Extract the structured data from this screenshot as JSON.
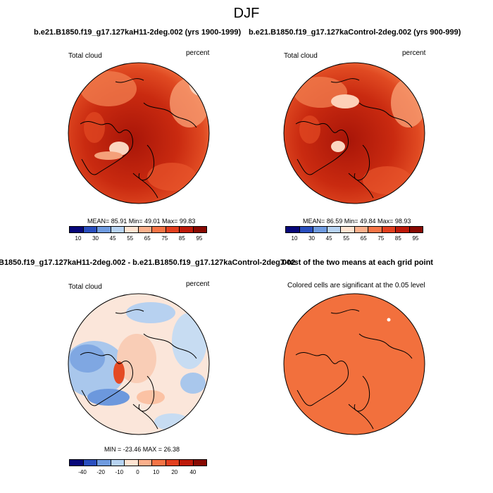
{
  "figure": {
    "title": "DJF",
    "panels": [
      {
        "title": "b.e21.B1850.f19_g17.127kaH11-2deg.002 (yrs 1900-1999)",
        "variable": "Total cloud",
        "units": "percent",
        "stats": "MEAN= 85.91  Min= 49.01  Max= 99.83",
        "colorbar_ticks": [
          "10",
          "30",
          "45",
          "55",
          "65",
          "75",
          "85",
          "95"
        ]
      },
      {
        "title": "b.e21.B1850.f19_g17.127kaControl-2deg.002 (yrs 900-999)",
        "variable": "Total cloud",
        "units": "percent",
        "stats": "MEAN= 86.59  Min= 49.84  Max= 98.93",
        "colorbar_ticks": [
          "10",
          "30",
          "45",
          "55",
          "65",
          "75",
          "85",
          "95"
        ]
      },
      {
        "title": "B1850.f19_g17.127kaH11-2deg.002 - b.e21.B1850.f19_g17.127kaControl-2deg.002",
        "variable": "Total cloud",
        "units": "percent",
        "stats": "MIN = -23.46 MAX = 26.38",
        "colorbar_ticks": [
          "-40",
          "-20",
          "-10",
          "0",
          "10",
          "20",
          "40"
        ]
      },
      {
        "title": "T-test of the two means at each grid point",
        "subtitle": "Colored cells are significant at the 0.05 level"
      }
    ]
  },
  "colors": {
    "abs_scale": [
      "#08087a",
      "#2a4fbf",
      "#6f9be0",
      "#b7d3f2",
      "#ffe4d2",
      "#fbb08c",
      "#f57446",
      "#e34020",
      "#bd1a0a",
      "#880a02"
    ],
    "diff_scale": [
      "#08087a",
      "#2a4fbf",
      "#6f9be0",
      "#b7d3f2",
      "#ffe4d2",
      "#fbb08c",
      "#f57446",
      "#e34020",
      "#bd1a0a",
      "#880a02"
    ],
    "ttest_fill": "#f2703d"
  }
}
